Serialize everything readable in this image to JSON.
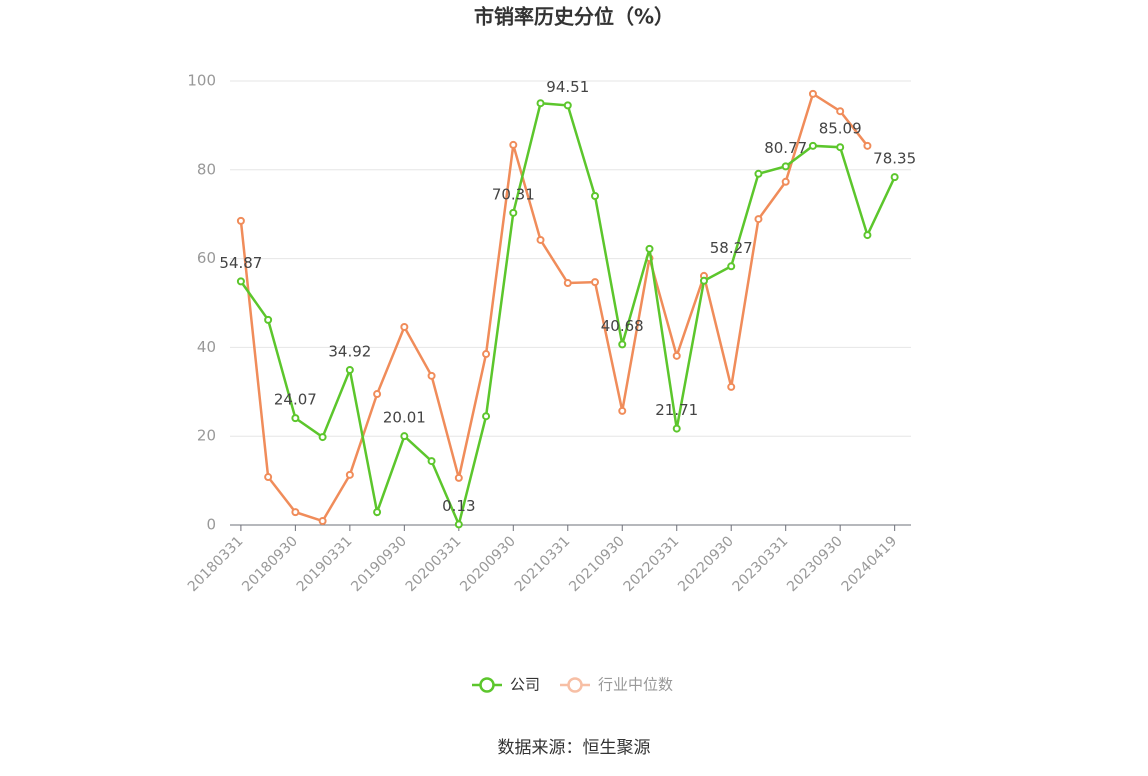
{
  "chart_data": {
    "type": "line",
    "title": "市销率历史分位（%）",
    "categories": [
      "20180331",
      null,
      "20180930",
      null,
      "20190331",
      null,
      "20190930",
      null,
      "20200331",
      null,
      "20200930",
      null,
      "20210331",
      null,
      "20210930",
      null,
      "20220331",
      null,
      "20220930",
      null,
      "20230331",
      null,
      "20230930",
      null,
      "20240419"
    ],
    "series": [
      {
        "name": "公司",
        "color": "#5cc62c",
        "values": [
          54.87,
          46.2,
          24.07,
          19.8,
          34.92,
          2.9,
          20.01,
          14.4,
          0.13,
          24.5,
          70.31,
          95.0,
          94.51,
          74.1,
          40.68,
          62.2,
          21.71,
          55.0,
          58.27,
          79.1,
          80.77,
          85.4,
          85.09,
          65.3,
          78.35
        ],
        "value_labels": [
          "54.87",
          null,
          "24.07",
          null,
          "34.92",
          null,
          "20.01",
          null,
          "0.13",
          null,
          "70.31",
          null,
          "94.51",
          null,
          "40.68",
          null,
          "21.71",
          null,
          "58.27",
          null,
          "80.77",
          null,
          "85.09",
          null,
          "78.35"
        ]
      },
      {
        "name": "行业中位数",
        "color": "#f08c5a",
        "values": [
          68.5,
          10.8,
          2.9,
          0.9,
          11.3,
          29.5,
          44.6,
          33.6,
          10.6,
          38.5,
          85.6,
          64.2,
          54.5,
          54.7,
          25.7,
          60.1,
          38.1,
          56.1,
          31.1,
          68.9,
          77.3,
          97.1,
          93.2,
          85.4,
          null
        ]
      }
    ],
    "ylim": [
      0,
      100
    ],
    "yticks": [
      0,
      20,
      40,
      60,
      80,
      100
    ],
    "grid": true,
    "source": "数据来源：恒生聚源"
  }
}
